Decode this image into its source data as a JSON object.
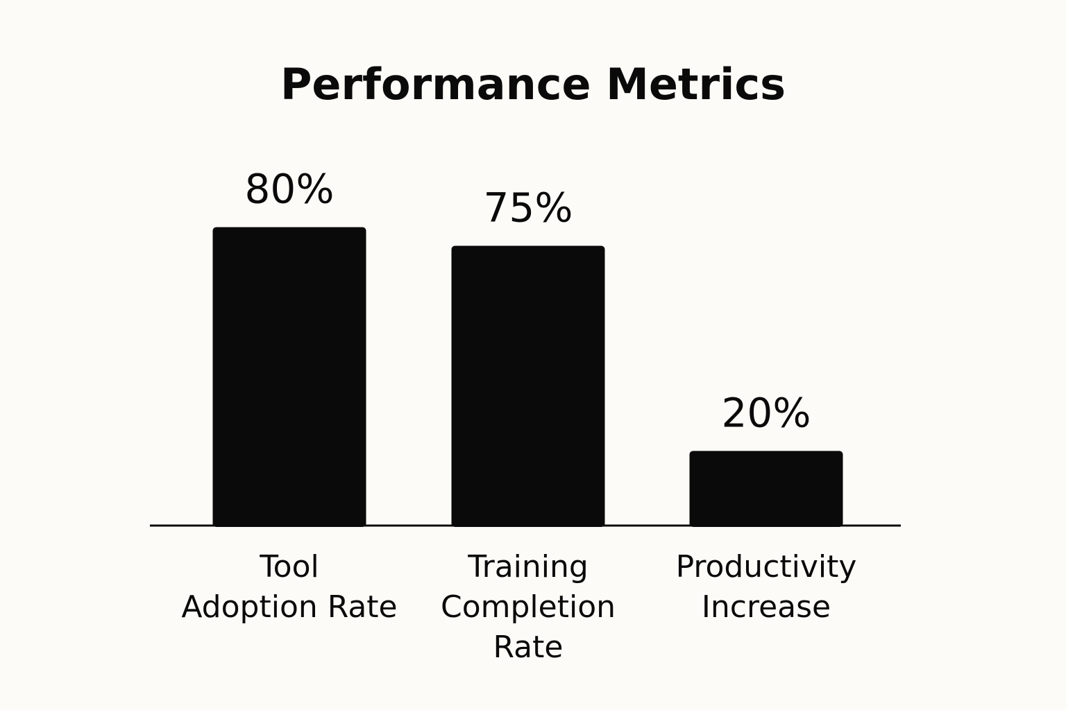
{
  "chart_data": {
    "type": "bar",
    "title": "Performance Metrics",
    "categories": [
      [
        "Tool",
        "Adoption Rate"
      ],
      [
        "Training",
        "Completion",
        "Rate"
      ],
      [
        "Productivity",
        "Increase"
      ]
    ],
    "values": [
      80,
      75,
      20
    ],
    "value_labels": [
      "80%",
      "75%",
      "20%"
    ],
    "xlabel": "",
    "ylabel": "",
    "grid": false,
    "legend": "none",
    "colors": {
      "background": "#fcfbf7",
      "bar": "#0a0a0a",
      "text": "#0a0a0a",
      "axis": "#0a0a0a"
    }
  }
}
